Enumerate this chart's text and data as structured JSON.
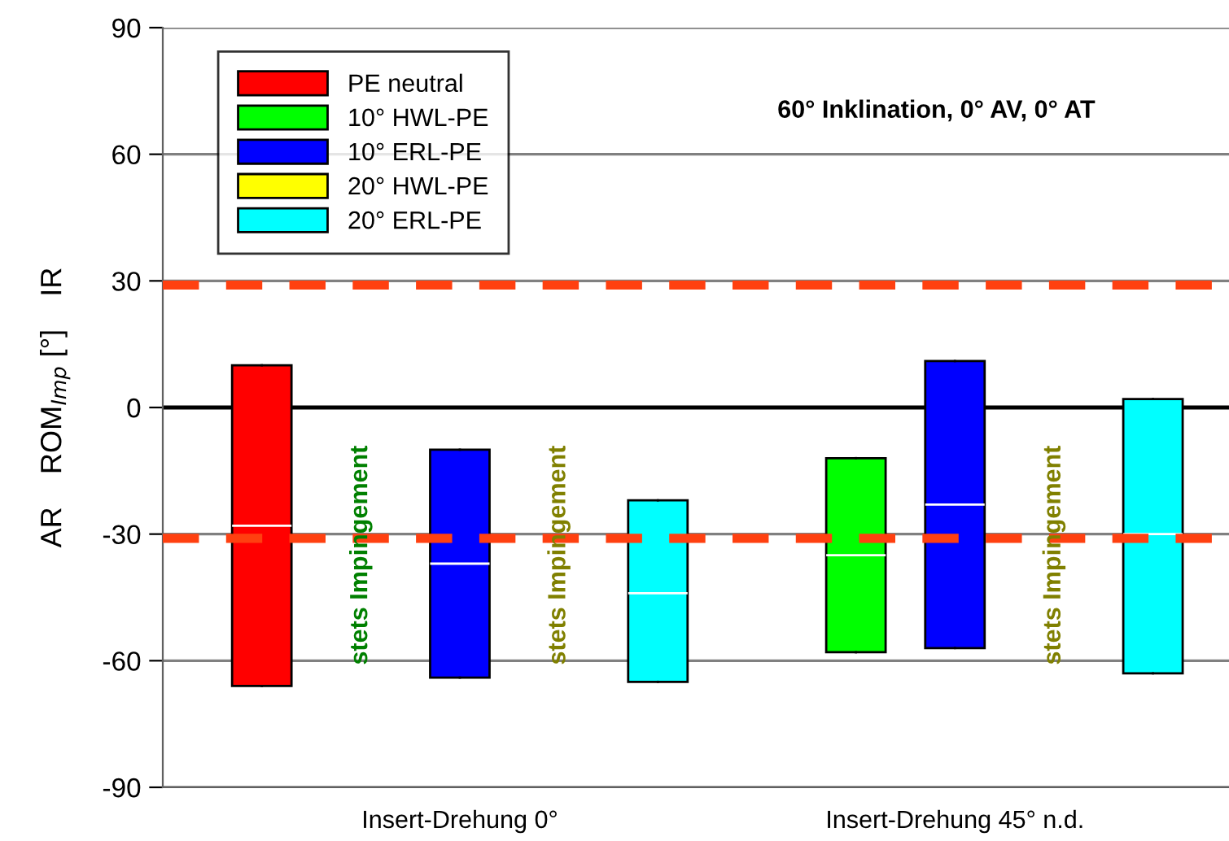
{
  "chart_data": {
    "type": "box",
    "title": "60° Inklination, 0° AV, 0° AT",
    "ylabel": "AR    ROM$_{Imp}$ [°]    IR",
    "categories": [
      "Insert-Drehung 0°",
      "Insert-Drehung 45° n.d."
    ],
    "series": [
      {
        "name": "PE neutral",
        "color": "#ff0000",
        "boxes": [
          {
            "low": -66,
            "q1": -66,
            "median": -28,
            "q3": 10,
            "high": 10
          },
          null
        ]
      },
      {
        "name": "10° HWL-PE",
        "color": "#00ff00",
        "boxes": [
          null,
          {
            "low": -58,
            "q1": -58,
            "median": -35,
            "q3": -12,
            "high": -12
          }
        ]
      },
      {
        "name": "10° ERL-PE",
        "color": "#0000ff",
        "boxes": [
          {
            "low": -64,
            "q1": -64,
            "median": -37,
            "q3": -10,
            "high": -10
          },
          {
            "low": -57,
            "q1": -57,
            "median": -23,
            "q3": 11,
            "high": 11
          }
        ]
      },
      {
        "name": "20° HWL-PE",
        "color": "#ffff00",
        "boxes": [
          null,
          null
        ]
      },
      {
        "name": "20° ERL-PE",
        "color": "#00ffff",
        "boxes": [
          {
            "low": -65,
            "q1": -65,
            "median": -44,
            "q3": -22,
            "high": -22
          },
          {
            "low": -63,
            "q1": -63,
            "median": -30,
            "q3": 2,
            "high": 2
          }
        ]
      }
    ],
    "annotations": [
      "stets Impingement",
      "stets Impingement",
      "stets Impingement"
    ],
    "ylim": [
      -90,
      90
    ],
    "yticks": [
      -90,
      -60,
      -30,
      0,
      30,
      60,
      90
    ],
    "ref_lines": [
      {
        "axis": "y",
        "value": 0,
        "color": "#000000",
        "line_style": "solid"
      },
      {
        "axis": "y",
        "value": 29,
        "color": "#ff4010",
        "line_style": "dashed"
      },
      {
        "axis": "y",
        "value": -31,
        "color": "#ff4010",
        "line_style": "dashed"
      }
    ],
    "grid": "y",
    "legend": "top left"
  }
}
